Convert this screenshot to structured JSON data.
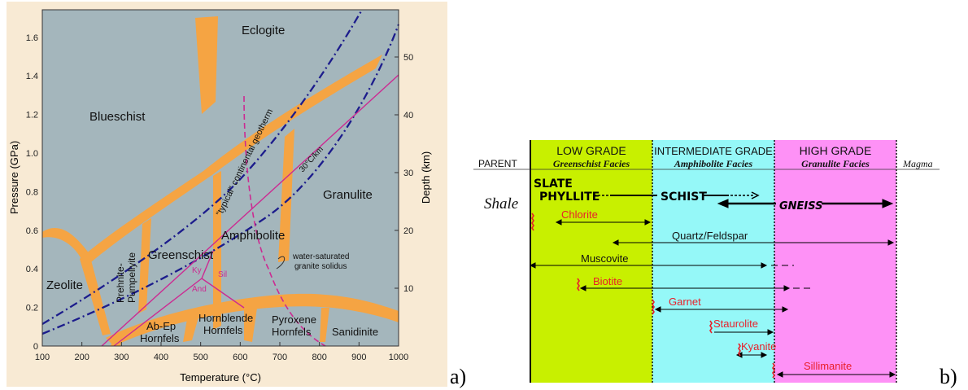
{
  "panel_a": {
    "letter": "a)",
    "xlabel": "Temperature (°C)",
    "ylabel_left": "Pressure (GPa)",
    "ylabel_right": "Depth (km)",
    "x_ticks": [
      "100",
      "200",
      "300",
      "400",
      "500",
      "600",
      "700",
      "800",
      "900",
      "1000"
    ],
    "y_ticks": [
      "0",
      "0.2",
      "0.4",
      "0.6",
      "0.8",
      "1.0",
      "1.2",
      "1.4",
      "1.6"
    ],
    "depth_ticks": [
      "10",
      "20",
      "30",
      "40",
      "50"
    ],
    "facies": {
      "eclogite": "Eclogite",
      "blueschist": "Blueschist",
      "granulite": "Granulite",
      "amphibolite": "Amphibolite",
      "greenschist": "Greenschist",
      "zeolite": "Zeolite",
      "prehnite1": "Prehnite-",
      "prehnite2": "Pumpellyite",
      "abep1": "Ab-Ep",
      "abep2": "Hornfels",
      "hbl1": "Hornblende",
      "hbl2": "Hornfels",
      "px1": "Pyroxene",
      "px2": "Hornfels",
      "sanidinite": "Sanidinite"
    },
    "geotherm_label": "\"typical\" continental geotherm",
    "gradient_label": "30°C/km",
    "solidus_label1": "water-saturated",
    "solidus_label2": "granite solidus",
    "ky": "Ky",
    "sil": "Sil",
    "and": "And",
    "colors": {
      "background": "#a4b6bc",
      "facies_band": "#f5a443",
      "geotherm": "#1c1c8c",
      "magenta": "#cc2a92"
    }
  },
  "panel_b": {
    "letter": "b)",
    "low_grade": "LOW GRADE",
    "intermediate_grade": "INTERMEDIATE GRADE",
    "high_grade": "HIGH GRADE",
    "parent": "PARENT",
    "greenschist_facies": "Greenschist Facies",
    "amphibolite_facies": "Amphibolite Facies",
    "granulite_facies": "Granulite Facies",
    "magma": "Magma",
    "shale": "Shale",
    "slate": "SLATE",
    "phyllite": "PHYLLITE",
    "schist": "SCHIST",
    "gneiss": "GNEISS",
    "minerals": {
      "chlorite": "Chlorite",
      "quartz": "Quartz/Feldspar",
      "muscovite": "Muscovite",
      "biotite": "Biotite",
      "garnet": "Garnet",
      "staurolite": "Staurolite",
      "kyanite": "Kyanite",
      "sillimanite": "Sillimanite"
    },
    "colors": {
      "low": "#c8f000",
      "intermediate": "#95f8f8",
      "high": "#fe91f6",
      "mineral_red": "#e8202a"
    }
  }
}
